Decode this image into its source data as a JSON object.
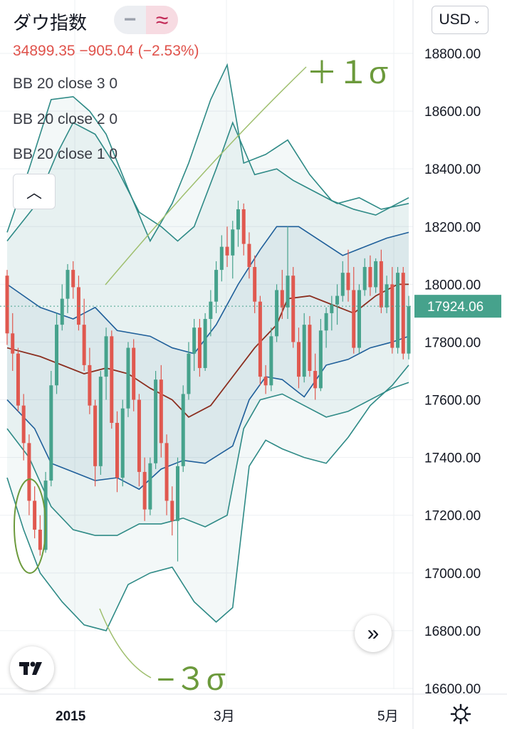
{
  "header": {
    "title": "ダウ指数",
    "change": "34899.35  −905.04 (−2.53%)",
    "indicators": [
      "BB 20 close 3 0",
      "BB 20 close 2 0",
      "BB 20 close 1 0"
    ]
  },
  "currency": "USD",
  "currency_caret": "⌄",
  "annotations": {
    "upper": "＋１σ",
    "lower": "−３σ"
  },
  "colors": {
    "up": "#46a28c",
    "down": "#e0584f",
    "mid": "#8b2e1f",
    "band": "#1f5f9a",
    "band_outer": "#2e8a86",
    "accent": "#6c9a3c"
  },
  "chart_data": {
    "type": "candlestick",
    "title": "",
    "ylim": [
      16600,
      18800
    ],
    "y_ticks": [
      "18800.00",
      "18600.00",
      "18400.00",
      "18200.00",
      "18000.00",
      "17800.00",
      "17600.00",
      "17400.00",
      "17200.00",
      "17000.00",
      "16800.00",
      "16600.00"
    ],
    "x_ticks": [
      "2015",
      "3月",
      "5月"
    ],
    "last_price": "17924.06",
    "ohlc": [
      [
        18030,
        18050,
        17790,
        17830
      ],
      [
        17830,
        17900,
        17700,
        17760
      ],
      [
        17760,
        17780,
        17560,
        17580
      ],
      [
        17580,
        17620,
        17390,
        17450
      ],
      [
        17450,
        17480,
        17200,
        17250
      ],
      [
        17250,
        17300,
        17120,
        17150
      ],
      [
        17150,
        17200,
        17060,
        17080
      ],
      [
        17080,
        17350,
        17070,
        17320
      ],
      [
        17320,
        17700,
        17300,
        17650
      ],
      [
        17650,
        17900,
        17620,
        17860
      ],
      [
        17860,
        18000,
        17840,
        17950
      ],
      [
        17950,
        18070,
        17900,
        18050
      ],
      [
        18050,
        18080,
        17950,
        17990
      ],
      [
        17990,
        18030,
        17840,
        17860
      ],
      [
        17860,
        17950,
        17700,
        17720
      ],
      [
        17720,
        17780,
        17550,
        17580
      ],
      [
        17580,
        17600,
        17300,
        17370
      ],
      [
        17370,
        17700,
        17340,
        17680
      ],
      [
        17680,
        17850,
        17600,
        17820
      ],
      [
        17820,
        17840,
        17500,
        17520
      ],
      [
        17520,
        17560,
        17280,
        17330
      ],
      [
        17330,
        17600,
        17300,
        17570
      ],
      [
        17570,
        17800,
        17540,
        17780
      ],
      [
        17780,
        17810,
        17560,
        17600
      ],
      [
        17600,
        17620,
        17300,
        17350
      ],
      [
        17350,
        17400,
        17180,
        17220
      ],
      [
        17220,
        17400,
        17200,
        17380
      ],
      [
        17380,
        17700,
        17360,
        17670
      ],
      [
        17670,
        17720,
        17400,
        17450
      ],
      [
        17450,
        17480,
        17200,
        17250
      ],
      [
        17250,
        17300,
        17130,
        17180
      ],
      [
        17180,
        17400,
        17040,
        17370
      ],
      [
        17370,
        17650,
        17350,
        17620
      ],
      [
        17620,
        17800,
        17600,
        17760
      ],
      [
        17760,
        17880,
        17700,
        17850
      ],
      [
        17850,
        17880,
        17680,
        17710
      ],
      [
        17710,
        17900,
        17700,
        17880
      ],
      [
        17880,
        17980,
        17820,
        17940
      ],
      [
        17940,
        18080,
        17900,
        18050
      ],
      [
        18050,
        18170,
        18010,
        18130
      ],
      [
        18130,
        18200,
        18060,
        18100
      ],
      [
        18100,
        18220,
        18020,
        18190
      ],
      [
        18190,
        18290,
        18130,
        18260
      ],
      [
        18260,
        18280,
        18100,
        18140
      ],
      [
        18140,
        18180,
        18020,
        18060
      ],
      [
        18060,
        18100,
        17900,
        17940
      ],
      [
        17940,
        17960,
        17650,
        17680
      ],
      [
        17680,
        17720,
        17620,
        17650
      ],
      [
        17650,
        17850,
        17630,
        17820
      ],
      [
        17820,
        18000,
        17800,
        17980
      ],
      [
        17980,
        18050,
        17880,
        17920
      ],
      [
        17920,
        18200,
        17880,
        18030
      ],
      [
        18030,
        18060,
        17780,
        17800
      ],
      [
        17800,
        17850,
        17640,
        17680
      ],
      [
        17680,
        17900,
        17660,
        17860
      ],
      [
        17860,
        17890,
        17680,
        17700
      ],
      [
        17700,
        17760,
        17600,
        17640
      ],
      [
        17640,
        17880,
        17630,
        17840
      ],
      [
        17840,
        17920,
        17780,
        17900
      ],
      [
        17900,
        17960,
        17840,
        17930
      ],
      [
        17930,
        18000,
        17860,
        17960
      ],
      [
        17960,
        18080,
        17940,
        18040
      ],
      [
        18040,
        18120,
        17940,
        17980
      ],
      [
        17980,
        18060,
        17760,
        17780
      ],
      [
        17780,
        18000,
        17760,
        17980
      ],
      [
        17980,
        18090,
        17960,
        18060
      ],
      [
        18060,
        18100,
        17960,
        17990
      ],
      [
        17990,
        18090,
        17970,
        18080
      ],
      [
        18080,
        18120,
        17900,
        17920
      ],
      [
        17920,
        18030,
        17900,
        18000
      ],
      [
        18000,
        18060,
        17760,
        17780
      ],
      [
        17780,
        18060,
        17760,
        18040
      ],
      [
        18040,
        18060,
        17740,
        17760
      ],
      [
        17760,
        17960,
        17740,
        17924
      ]
    ],
    "bands": {
      "mid": [
        [
          0,
          17780
        ],
        [
          6,
          17750
        ],
        [
          10,
          17720
        ],
        [
          14,
          17690
        ],
        [
          18,
          17710
        ],
        [
          22,
          17690
        ],
        [
          26,
          17640
        ],
        [
          30,
          17600
        ],
        [
          33,
          17540
        ],
        [
          37,
          17580
        ],
        [
          41,
          17680
        ],
        [
          45,
          17780
        ],
        [
          49,
          17860
        ],
        [
          51,
          17950
        ],
        [
          55,
          17960
        ],
        [
          59,
          17930
        ],
        [
          63,
          17900
        ],
        [
          67,
          17960
        ],
        [
          71,
          18000
        ],
        [
          73,
          18000
        ]
      ],
      "upper1": [
        [
          0,
          18000
        ],
        [
          6,
          17920
        ],
        [
          12,
          17880
        ],
        [
          16,
          17920
        ],
        [
          20,
          17840
        ],
        [
          26,
          17820
        ],
        [
          30,
          17780
        ],
        [
          34,
          17760
        ],
        [
          38,
          17860
        ],
        [
          42,
          18000
        ],
        [
          46,
          18120
        ],
        [
          49,
          18200
        ],
        [
          53,
          18200
        ],
        [
          57,
          18150
        ],
        [
          61,
          18100
        ],
        [
          65,
          18130
        ],
        [
          69,
          18160
        ],
        [
          73,
          18180
        ]
      ],
      "lower1": [
        [
          0,
          17600
        ],
        [
          5,
          17500
        ],
        [
          8,
          17380
        ],
        [
          12,
          17350
        ],
        [
          16,
          17320
        ],
        [
          20,
          17330
        ],
        [
          24,
          17290
        ],
        [
          28,
          17360
        ],
        [
          32,
          17390
        ],
        [
          36,
          17380
        ],
        [
          41,
          17440
        ],
        [
          44,
          17600
        ],
        [
          47,
          17680
        ],
        [
          50,
          17670
        ],
        [
          54,
          17610
        ],
        [
          58,
          17720
        ],
        [
          62,
          17740
        ],
        [
          66,
          17780
        ],
        [
          70,
          17800
        ],
        [
          73,
          17820
        ]
      ]
    },
    "bands_outer": {
      "upper2": [
        [
          0,
          18150
        ],
        [
          5,
          18270
        ],
        [
          9,
          18450
        ],
        [
          12,
          18560
        ],
        [
          16,
          18520
        ],
        [
          20,
          18400
        ],
        [
          24,
          18250
        ],
        [
          28,
          18200
        ],
        [
          31,
          18150
        ],
        [
          34,
          18200
        ],
        [
          38,
          18400
        ],
        [
          41,
          18560
        ],
        [
          45,
          18380
        ],
        [
          49,
          18400
        ],
        [
          52,
          18360
        ],
        [
          56,
          18320
        ],
        [
          60,
          18280
        ],
        [
          64,
          18300
        ],
        [
          68,
          18260
        ],
        [
          73,
          18280
        ]
      ],
      "lower2": [
        [
          0,
          17500
        ],
        [
          4,
          17400
        ],
        [
          8,
          17230
        ],
        [
          12,
          17150
        ],
        [
          16,
          17130
        ],
        [
          20,
          17130
        ],
        [
          24,
          17170
        ],
        [
          28,
          17170
        ],
        [
          32,
          17190
        ],
        [
          36,
          17160
        ],
        [
          40,
          17200
        ],
        [
          43,
          17500
        ],
        [
          46,
          17600
        ],
        [
          50,
          17620
        ],
        [
          54,
          17580
        ],
        [
          58,
          17540
        ],
        [
          62,
          17560
        ],
        [
          66,
          17600
        ],
        [
          70,
          17640
        ],
        [
          73,
          17660
        ]
      ],
      "upper3": [
        [
          0,
          18180
        ],
        [
          4,
          18400
        ],
        [
          8,
          18640
        ],
        [
          12,
          18650
        ],
        [
          15,
          18600
        ],
        [
          18,
          18520
        ],
        [
          22,
          18330
        ],
        [
          26,
          18150
        ],
        [
          30,
          18280
        ],
        [
          33,
          18420
        ],
        [
          37,
          18640
        ],
        [
          40,
          18760
        ],
        [
          43,
          18420
        ],
        [
          47,
          18450
        ],
        [
          51,
          18500
        ],
        [
          55,
          18380
        ],
        [
          59,
          18290
        ],
        [
          63,
          18260
        ],
        [
          67,
          18240
        ],
        [
          73,
          18300
        ]
      ],
      "lower3": [
        [
          0,
          17330
        ],
        [
          3,
          17150
        ],
        [
          6,
          17000
        ],
        [
          10,
          16900
        ],
        [
          14,
          16820
        ],
        [
          18,
          16800
        ],
        [
          22,
          16960
        ],
        [
          26,
          17000
        ],
        [
          30,
          17020
        ],
        [
          34,
          16900
        ],
        [
          38,
          16830
        ],
        [
          41,
          16880
        ],
        [
          44,
          17370
        ],
        [
          47,
          17460
        ],
        [
          50,
          17430
        ],
        [
          54,
          17400
        ],
        [
          58,
          17380
        ],
        [
          62,
          17470
        ],
        [
          66,
          17580
        ],
        [
          70,
          17650
        ],
        [
          73,
          17720
        ]
      ]
    }
  }
}
